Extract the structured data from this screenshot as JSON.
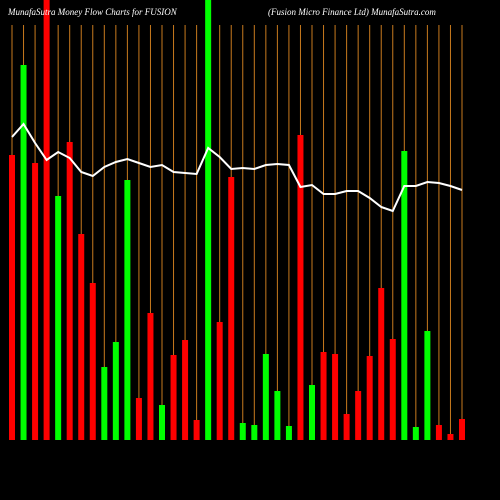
{
  "chart_data": {
    "type": "bar",
    "title": "MunafaSutra  Money Flow  Charts for FUSION",
    "subtitle": "(Fusion  Micro  Finance  Ltd) MunafaSutra.com",
    "ylim": [
      0,
      440
    ],
    "grid_color": "#c87a1e",
    "series": [
      {
        "colors": [
          "#ff0000",
          "#00ff00",
          "#ff0000",
          "#ff0000",
          "#00ff00",
          "#ff0000",
          "#ff0000",
          "#ff0000",
          "#00ff00",
          "#00ff00",
          "#00ff00",
          "#ff0000",
          "#ff0000",
          "#00ff00",
          "#ff0000",
          "#ff0000",
          "#ff0000",
          "#00ff00",
          "#ff0000",
          "#ff0000",
          "#00ff00",
          "#00ff00",
          "#00ff00",
          "#00ff00",
          "#00ff00",
          "#ff0000",
          "#00ff00",
          "#ff0000",
          "#ff0000",
          "#ff0000",
          "#ff0000",
          "#ff0000",
          "#ff0000",
          "#ff0000",
          "#00ff00",
          "#00ff00",
          "#00ff00",
          "#ff0000",
          "#ff0000",
          "#ff0000"
        ],
        "values": [
          285,
          375,
          277,
          440,
          244,
          298,
          206,
          157,
          73,
          98,
          260,
          42,
          127,
          35,
          85,
          100,
          20,
          440,
          118,
          263,
          17,
          15,
          86,
          49,
          14,
          305,
          55,
          88,
          86,
          26,
          49,
          84,
          152,
          101,
          289,
          13,
          109,
          15,
          6,
          21
        ]
      },
      {
        "type": "line",
        "color": "#ffffff",
        "values": [
          303,
          316,
          297,
          280,
          288,
          282,
          268,
          264,
          273,
          278,
          281,
          277,
          273,
          275,
          268,
          267,
          266,
          292,
          283,
          271,
          272,
          271,
          275,
          276,
          275,
          253,
          255,
          246,
          246,
          249,
          249,
          242,
          233,
          229,
          254,
          254,
          258,
          257,
          254,
          250
        ]
      }
    ]
  }
}
